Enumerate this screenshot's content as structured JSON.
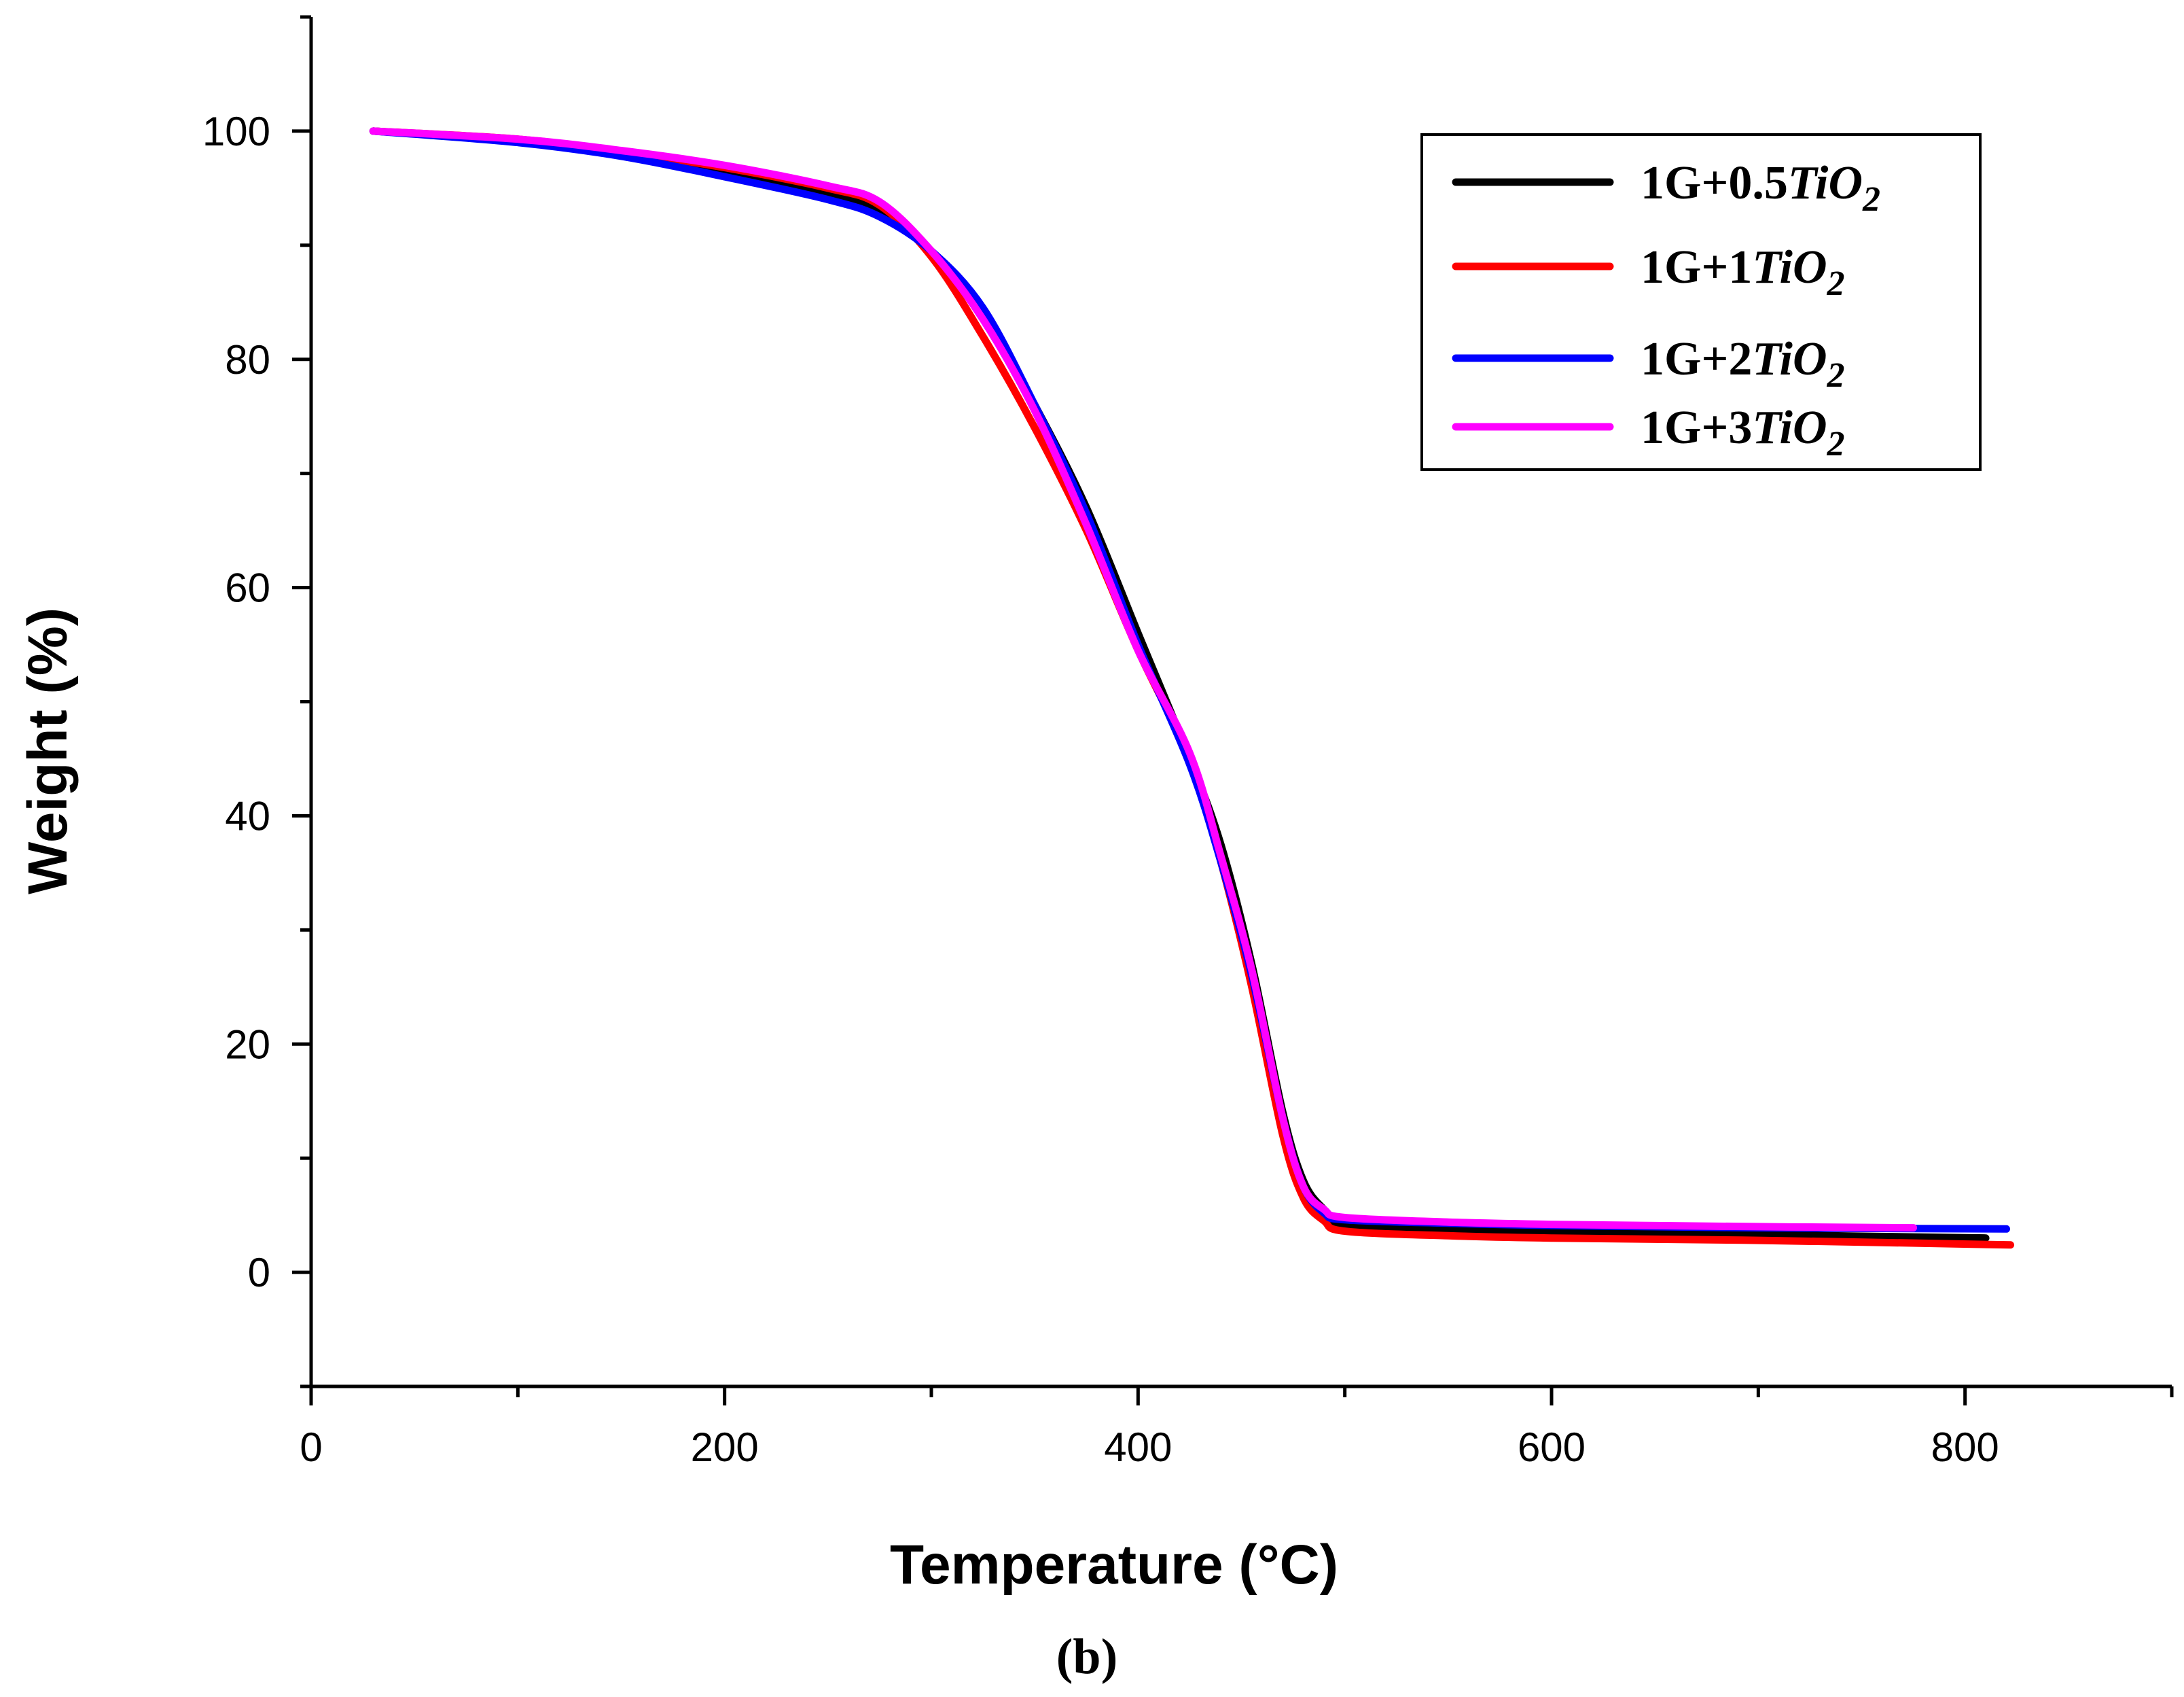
{
  "chart_data": {
    "type": "line",
    "title": "",
    "xlabel": "Temperature (°C)",
    "ylabel": "Weight (%)",
    "panel_label": "(b)",
    "xlim": [
      0,
      900
    ],
    "ylim": [
      -10,
      110
    ],
    "xticks": [
      0,
      200,
      400,
      600,
      800
    ],
    "yticks": [
      0,
      20,
      40,
      60,
      80,
      100
    ],
    "grid": false,
    "legend_position": "top-right",
    "series": [
      {
        "name": "1G+0.5TiO2",
        "prefix": "1G+0.5",
        "formula_main": "TiO",
        "formula_sub": "2",
        "color": "#000000",
        "x": [
          30,
          100,
          150,
          200,
          250,
          275,
          300,
          325,
          350,
          375,
          400,
          425,
          440,
          455,
          470,
          480,
          490,
          500,
          550,
          600,
          700,
          810
        ],
        "y": [
          100,
          99.2,
          98,
          96.5,
          94.5,
          93,
          89.5,
          84,
          76,
          67,
          56,
          45,
          37.5,
          27,
          14,
          8,
          5.5,
          4.2,
          3.8,
          3.6,
          3.3,
          3.0
        ]
      },
      {
        "name": "1G+1TiO2",
        "prefix": "1G+1",
        "formula_main": "TiO",
        "formula_sub": "2",
        "color": "#ff0000",
        "x": [
          30,
          100,
          150,
          200,
          250,
          275,
          300,
          325,
          350,
          375,
          400,
          425,
          440,
          455,
          470,
          480,
          490,
          500,
          550,
          600,
          700,
          822
        ],
        "y": [
          100,
          99.3,
          98.2,
          96.8,
          95,
          93.5,
          89,
          82,
          74,
          65,
          54.5,
          45,
          36,
          25,
          12,
          6.5,
          4.5,
          3.6,
          3.2,
          3.0,
          2.8,
          2.4
        ]
      },
      {
        "name": "1G+2TiO2",
        "prefix": "1G+2",
        "formula_main": "TiO",
        "formula_sub": "2",
        "color": "#0000ff",
        "x": [
          30,
          100,
          150,
          200,
          250,
          275,
          300,
          325,
          350,
          375,
          400,
          425,
          440,
          455,
          470,
          480,
          490,
          500,
          550,
          600,
          700,
          820
        ],
        "y": [
          100,
          99.0,
          97.8,
          96.0,
          94.0,
          92.5,
          89.5,
          84.5,
          76,
          66.5,
          55,
          44.5,
          36,
          26,
          13.5,
          7.5,
          5.2,
          4.6,
          4.3,
          4.1,
          3.9,
          3.8
        ]
      },
      {
        "name": "1G+3TiO2",
        "prefix": "1G+3",
        "formula_main": "TiO",
        "formula_sub": "2",
        "color": "#ff00ff",
        "x": [
          30,
          100,
          150,
          200,
          250,
          275,
          300,
          325,
          350,
          375,
          400,
          425,
          440,
          455,
          470,
          480,
          490,
          500,
          550,
          600,
          700,
          775
        ],
        "y": [
          100,
          99.3,
          98.3,
          97.0,
          95.2,
          93.8,
          89.5,
          83.5,
          75.5,
          65.5,
          54.5,
          45.5,
          36.5,
          26.5,
          13.5,
          7.5,
          5.5,
          4.8,
          4.4,
          4.2,
          4.0,
          3.9
        ]
      }
    ]
  }
}
